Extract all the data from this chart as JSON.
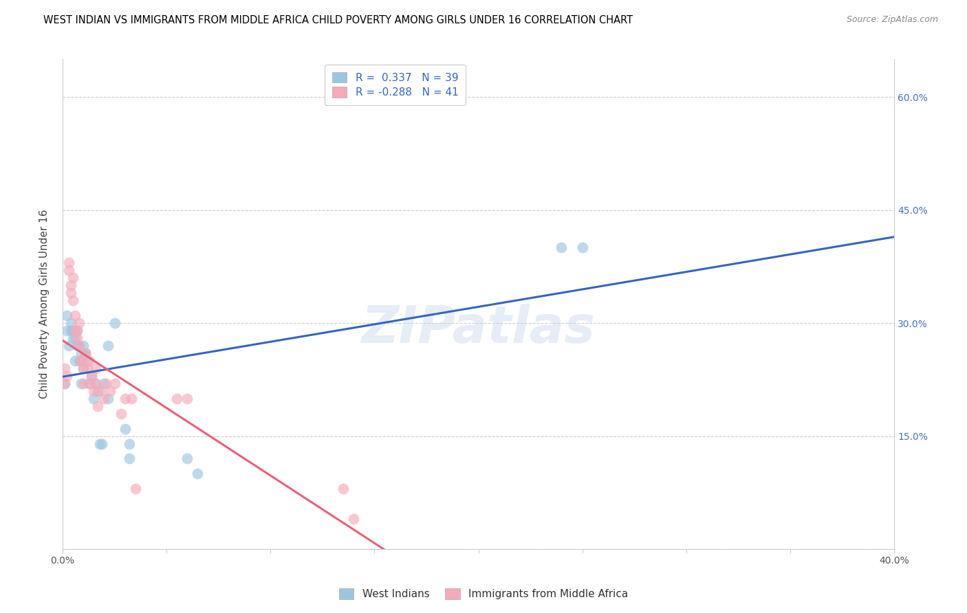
{
  "title": "WEST INDIAN VS IMMIGRANTS FROM MIDDLE AFRICA CHILD POVERTY AMONG GIRLS UNDER 16 CORRELATION CHART",
  "source": "Source: ZipAtlas.com",
  "ylabel": "Child Poverty Among Girls Under 16",
  "xmin": 0.0,
  "xmax": 0.4,
  "ymin": 0.0,
  "ymax": 0.65,
  "yticks": [
    0.0,
    0.15,
    0.3,
    0.45,
    0.6
  ],
  "right_ytick_labels": [
    "",
    "15.0%",
    "30.0%",
    "45.0%",
    "60.0%"
  ],
  "blue_color": "#9EC5E0",
  "pink_color": "#F4ABBA",
  "blue_line_color": "#3465C0",
  "pink_line_color": "#E8607A",
  "watermark": "ZIPatlas",
  "west_indians_x": [
    0.001,
    0.002,
    0.002,
    0.003,
    0.004,
    0.004,
    0.005,
    0.005,
    0.006,
    0.006,
    0.007,
    0.007,
    0.008,
    0.008,
    0.009,
    0.009,
    0.01,
    0.01,
    0.011,
    0.011,
    0.012,
    0.013,
    0.014,
    0.015,
    0.016,
    0.017,
    0.018,
    0.019,
    0.02,
    0.022,
    0.022,
    0.025,
    0.03,
    0.032,
    0.032,
    0.06,
    0.065,
    0.24,
    0.25
  ],
  "west_indians_y": [
    0.22,
    0.29,
    0.31,
    0.27,
    0.29,
    0.3,
    0.28,
    0.29,
    0.25,
    0.28,
    0.27,
    0.29,
    0.25,
    0.27,
    0.22,
    0.26,
    0.24,
    0.27,
    0.26,
    0.26,
    0.25,
    0.22,
    0.23,
    0.2,
    0.22,
    0.21,
    0.14,
    0.14,
    0.22,
    0.2,
    0.27,
    0.3,
    0.16,
    0.12,
    0.14,
    0.12,
    0.1,
    0.4,
    0.4
  ],
  "middle_africa_x": [
    0.001,
    0.001,
    0.002,
    0.003,
    0.003,
    0.004,
    0.004,
    0.005,
    0.005,
    0.006,
    0.006,
    0.007,
    0.007,
    0.008,
    0.008,
    0.009,
    0.009,
    0.01,
    0.01,
    0.011,
    0.012,
    0.013,
    0.013,
    0.014,
    0.015,
    0.016,
    0.016,
    0.017,
    0.018,
    0.02,
    0.021,
    0.023,
    0.025,
    0.028,
    0.03,
    0.033,
    0.035,
    0.055,
    0.06,
    0.135,
    0.14
  ],
  "middle_africa_y": [
    0.22,
    0.24,
    0.23,
    0.37,
    0.38,
    0.34,
    0.35,
    0.33,
    0.36,
    0.29,
    0.31,
    0.29,
    0.28,
    0.27,
    0.3,
    0.25,
    0.25,
    0.24,
    0.22,
    0.26,
    0.24,
    0.22,
    0.25,
    0.23,
    0.21,
    0.22,
    0.24,
    0.19,
    0.21,
    0.2,
    0.22,
    0.21,
    0.22,
    0.18,
    0.2,
    0.2,
    0.08,
    0.2,
    0.2,
    0.08,
    0.04
  ]
}
